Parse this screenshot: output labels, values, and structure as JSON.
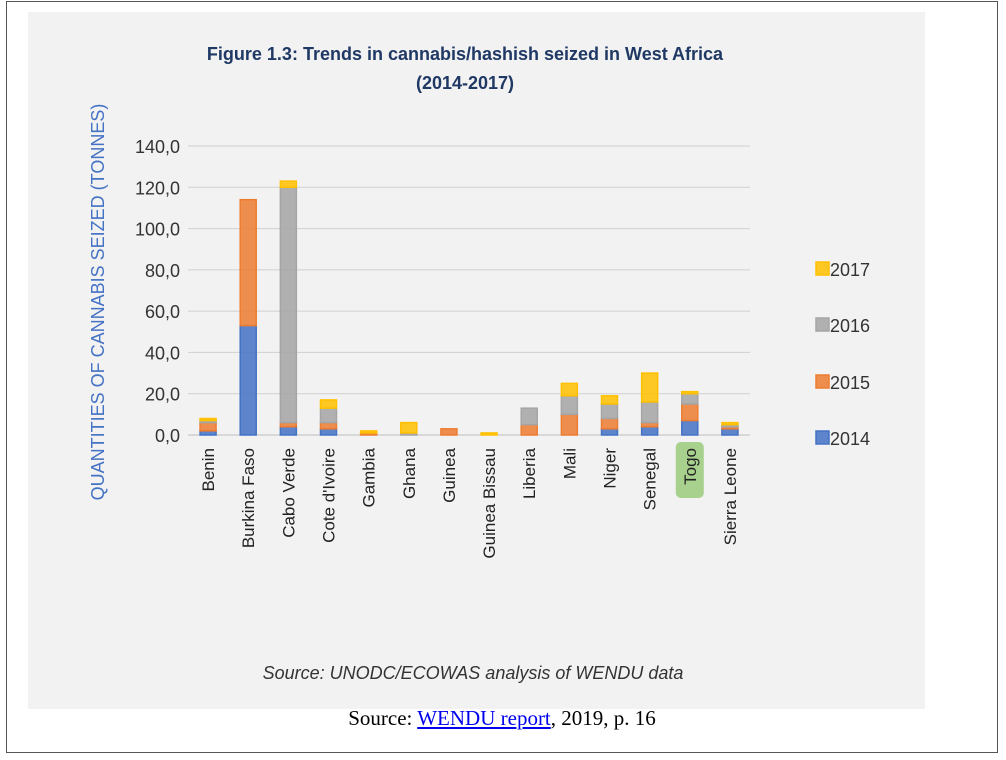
{
  "chart_data": {
    "type": "bar",
    "stacked": true,
    "title": [
      "Figure 1.3: Trends in cannabis/hashish seized in West Africa",
      "(2014-2017)"
    ],
    "ylabel": "QUANTITIES OF CANNABIS SEIZED (TONNES)",
    "xlabel": "",
    "ylim": [
      0,
      140
    ],
    "yticks": [
      "0,0",
      "20,0",
      "40,0",
      "60,0",
      "80,0",
      "100,0",
      "120,0",
      "140,0"
    ],
    "grid": true,
    "legend_position": "right",
    "categories": [
      "Benin",
      "Burkina Faso",
      "Cabo Verde",
      "Cote d'Ivoire",
      "Gambia",
      "Ghana",
      "Guinea",
      "Guinea Bissau",
      "Liberia",
      "Mali",
      "Niger",
      "Senegal",
      "Togo",
      "Sierra Leone"
    ],
    "highlighted_category": "Togo",
    "series": [
      {
        "name": "2014",
        "color": "#4472c4",
        "values": [
          2,
          53,
          4,
          3,
          0,
          0,
          0,
          0,
          0,
          0,
          3,
          4,
          7,
          3
        ]
      },
      {
        "name": "2015",
        "color": "#ed7d31",
        "values": [
          4,
          61,
          2,
          3,
          1,
          0,
          3,
          0,
          5,
          10,
          5,
          2,
          8,
          1
        ]
      },
      {
        "name": "2016",
        "color": "#a5a5a5",
        "values": [
          1,
          0,
          114,
          7,
          0,
          1,
          0,
          0,
          8,
          9,
          7,
          10,
          5,
          1
        ]
      },
      {
        "name": "2017",
        "color": "#ffc000",
        "values": [
          1,
          0,
          3,
          4,
          1,
          5,
          0,
          1,
          0,
          6,
          4,
          14,
          1,
          1
        ]
      }
    ],
    "source_note": "Source: UNODC/ECOWAS analysis of WENDU data"
  },
  "caption": {
    "prefix": "Source: ",
    "link_text": "WENDU report",
    "suffix": ", 2019, p. 16"
  }
}
